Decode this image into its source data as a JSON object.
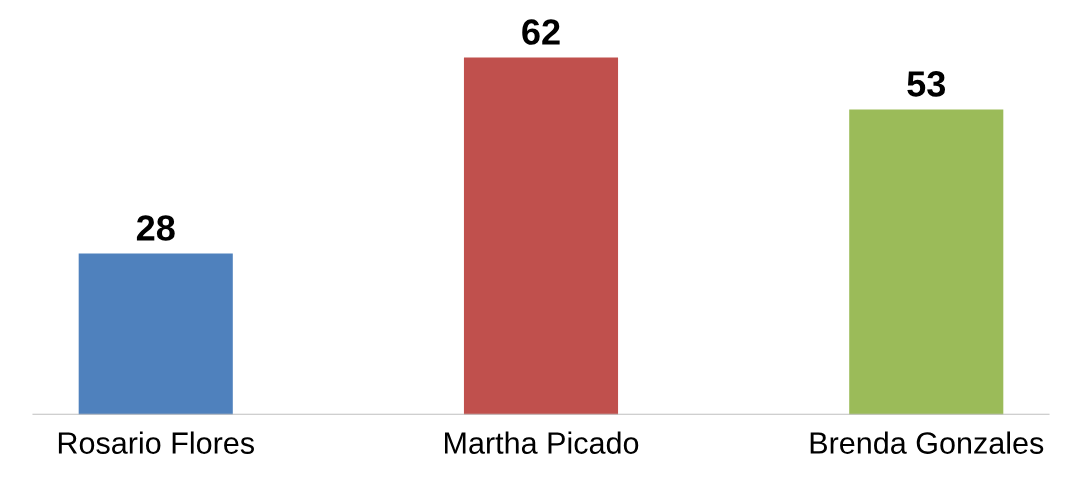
{
  "chart_data": {
    "type": "bar",
    "categories": [
      "Rosario Flores",
      "Martha Picado",
      "Brenda Gonzales"
    ],
    "values": [
      28,
      62,
      53
    ],
    "colors": [
      "#4f81bd",
      "#c0504d",
      "#9bbb59"
    ],
    "data_labels": true,
    "grid": false,
    "legend": false
  }
}
